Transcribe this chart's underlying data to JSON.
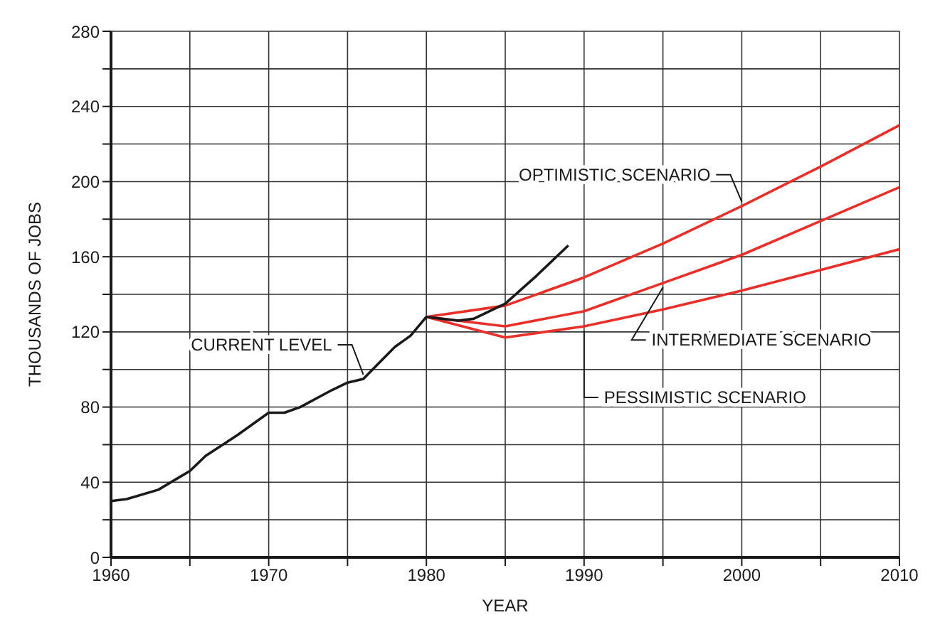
{
  "chart_data": {
    "type": "line",
    "xlabel": "YEAR",
    "ylabel": "THOUSANDS OF JOBS",
    "xlim": [
      1960,
      2010
    ],
    "ylim": [
      0,
      280
    ],
    "xticks": [
      1960,
      {
        "value": 1965,
        "label": null
      },
      1970,
      {
        "value": 1975,
        "label": null
      },
      1980,
      {
        "value": 1985,
        "label": null
      },
      1990,
      {
        "value": 1995,
        "label": null
      },
      2000,
      {
        "value": 2005,
        "label": null
      },
      2010
    ],
    "yticks": [
      0,
      {
        "value": 20,
        "label": null
      },
      40,
      {
        "value": 60,
        "label": null
      },
      80,
      {
        "value": 100,
        "label": null
      },
      120,
      {
        "value": 140,
        "label": null
      },
      160,
      {
        "value": 180,
        "label": null
      },
      200,
      {
        "value": 220,
        "label": null
      },
      240,
      {
        "value": 260,
        "label": null
      },
      280
    ],
    "grid": true,
    "legend": false,
    "marker": "none",
    "line_style": "solid",
    "series": [
      {
        "name": "CURRENT LEVEL",
        "color": "#1a1a1a",
        "x": [
          1960,
          1961,
          1963,
          1965,
          1966,
          1968,
          1970,
          1971,
          1972,
          1974,
          1975,
          1976,
          1978,
          1979,
          1980,
          1981,
          1982,
          1983,
          1985,
          1987,
          1989
        ],
        "values": [
          30,
          31,
          36,
          46,
          54,
          65,
          77,
          77,
          80,
          89,
          93,
          95,
          112,
          118,
          128,
          127,
          126,
          127,
          135,
          150,
          166
        ]
      },
      {
        "name": "OPTIMISTIC SCENARIO",
        "color": "#e8302a",
        "x": [
          1980,
          1985,
          1990,
          1995,
          2000,
          2005,
          2010
        ],
        "values": [
          128,
          134,
          149,
          167,
          187,
          208,
          230
        ]
      },
      {
        "name": "INTERMEDIATE SCENARIO",
        "color": "#e8302a",
        "x": [
          1980,
          1985,
          1990,
          1995,
          2000,
          2005,
          2010
        ],
        "values": [
          128,
          123,
          131,
          146,
          161,
          179,
          197
        ]
      },
      {
        "name": "PESSIMISTIC SCENARIO",
        "color": "#e8302a",
        "x": [
          1980,
          1985,
          1990,
          1995,
          2000,
          2005,
          2010
        ],
        "values": [
          128,
          117,
          123,
          132,
          142,
          153,
          164
        ]
      }
    ]
  }
}
